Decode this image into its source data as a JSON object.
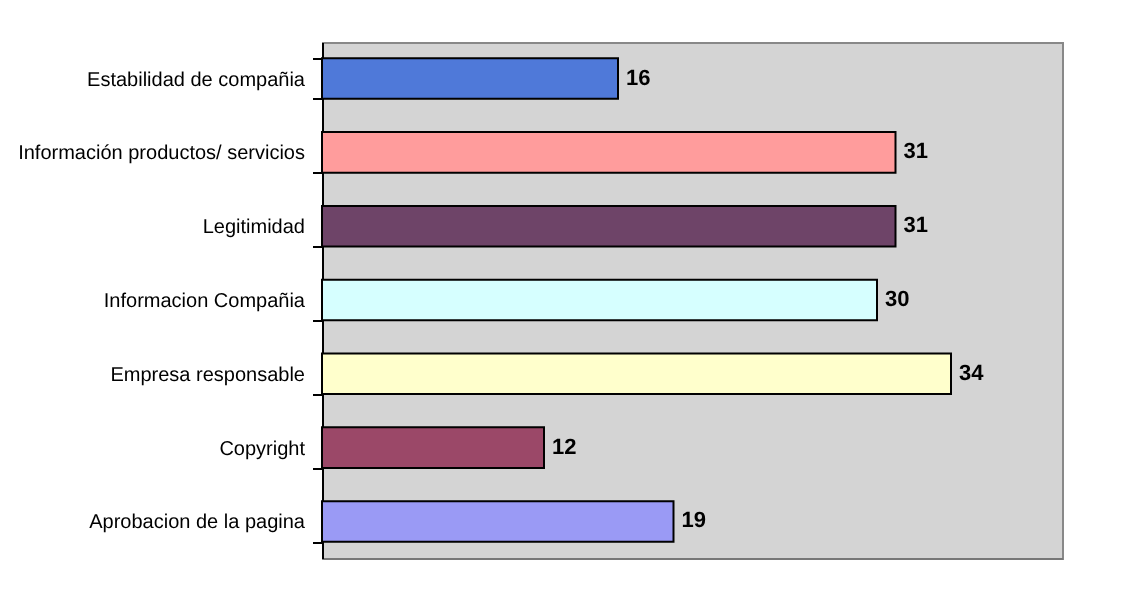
{
  "chart_data": {
    "type": "bar",
    "orientation": "horizontal",
    "data_labels": true,
    "tick_labels": "y",
    "categories": [
      "Estabilidad de compañia",
      "Información productos/ servicios",
      "Legitimidad",
      "Informacion Compañia",
      "Empresa responsable",
      "Copyright",
      "Aprobacion de la pagina"
    ],
    "values": [
      16,
      31,
      31,
      30,
      34,
      12,
      19
    ],
    "colors": [
      "#4f79d9",
      "#ff9c9c",
      "#6e4468",
      "#d6ffff",
      "#ffffcc",
      "#9b4868",
      "#9a9af5"
    ],
    "xlim": [
      0,
      40
    ]
  }
}
